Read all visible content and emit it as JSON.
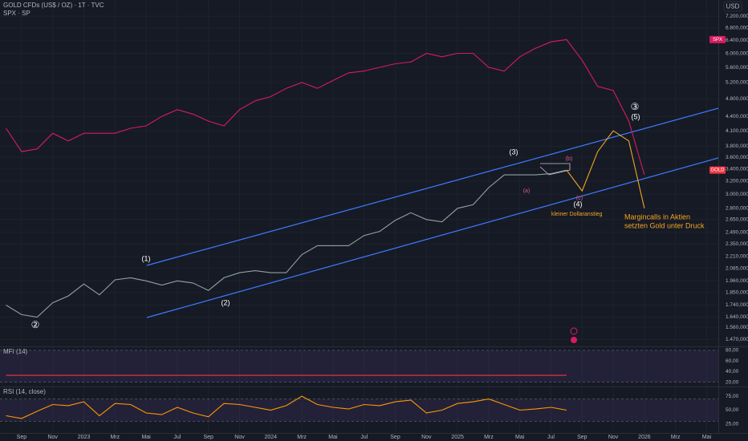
{
  "chart_data": [
    {
      "type": "line",
      "title": "GOLD CFDs (US$ / OZ) · 1T · TVC",
      "overlay_label": "SPX · SP",
      "currency": "USD",
      "log": true,
      "grid": true,
      "categories": [
        null,
        "Sep",
        null,
        "Nov",
        null,
        "2023",
        null,
        "Mrz",
        null,
        "Mai",
        null,
        "Jul",
        null,
        "Sep",
        null,
        "Nov",
        null,
        "2024",
        null,
        "Mrz",
        null,
        "Mai",
        null,
        "Jul",
        null,
        "Sep",
        null,
        "Nov",
        null,
        "2025",
        null,
        "Mrz",
        null,
        "Mai",
        null,
        "Jul",
        null,
        "Sep",
        null,
        "Nov",
        null,
        "2026",
        null,
        "Mrz",
        null,
        "Mai"
      ],
      "series": [
        {
          "name": "GOLD",
          "color": "#8fa39e",
          "values": [
            1740,
            1660,
            1640,
            1760,
            1820,
            1930,
            1830,
            1970,
            1990,
            1960,
            1920,
            1960,
            1940,
            1870,
            1990,
            2040,
            2060,
            2040,
            2040,
            2230,
            2330,
            2330,
            2330,
            2450,
            2500,
            2640,
            2740,
            2650,
            2620,
            2800,
            2850,
            3100,
            3300,
            3300,
            3300,
            3320,
            3380,
            null,
            null,
            null,
            null,
            null,
            null,
            null,
            null,
            null
          ]
        },
        {
          "name": "SPX",
          "color": "#d81b60",
          "values": [
            4150,
            3700,
            3750,
            4050,
            3900,
            4050,
            4050,
            4050,
            4150,
            4200,
            4400,
            4550,
            4450,
            4300,
            4200,
            4550,
            4750,
            4850,
            5050,
            5200,
            5050,
            5250,
            5450,
            5500,
            5600,
            5700,
            5750,
            6000,
            5900,
            6000,
            6000,
            5600,
            5500,
            5900,
            6150,
            6350,
            6420,
            5800,
            5100,
            5000,
            4300,
            3300,
            null,
            null,
            null,
            null
          ]
        },
        {
          "color": "#f5a623",
          "values": [
            null,
            null,
            null,
            null,
            null,
            null,
            null,
            null,
            null,
            null,
            null,
            null,
            null,
            null,
            null,
            null,
            null,
            null,
            null,
            null,
            null,
            null,
            null,
            null,
            null,
            null,
            null,
            null,
            null,
            null,
            null,
            null,
            null,
            null,
            null,
            null,
            3380,
            3050,
            3700,
            4100,
            3900,
            2800,
            null,
            null,
            null,
            null
          ]
        }
      ],
      "ylim": [
        1420,
        7800
      ],
      "yticks": [
        {
          "value": 7200,
          "label": "7.200,000"
        },
        {
          "value": 6800,
          "label": "6.800,000"
        },
        {
          "value": 6400,
          "label": "6.400,000"
        },
        {
          "value": 6000,
          "label": "6.000,000"
        },
        {
          "value": 5600,
          "label": "5.600,000"
        },
        {
          "value": 5200,
          "label": "5.200,000"
        },
        {
          "value": 4800,
          "label": "4.800,000"
        },
        {
          "value": 4400,
          "label": "4.400,000"
        },
        {
          "value": 4100,
          "label": "4.100,000"
        },
        {
          "value": 3800,
          "label": "3.800,000"
        },
        {
          "value": 3600,
          "label": "3.600,000"
        },
        {
          "value": 3400,
          "label": "3.400,000"
        },
        {
          "value": 3200,
          "label": "3.200,000"
        },
        {
          "value": 3000,
          "label": "3.000,000"
        },
        {
          "value": 2800,
          "label": "2.800,000"
        },
        {
          "value": 2650,
          "label": "2.650,000"
        },
        {
          "value": 2490,
          "label": "2.490,000"
        },
        {
          "value": 2350,
          "label": "2.350,000"
        },
        {
          "value": 2210,
          "label": "2.210,000"
        },
        {
          "value": 2085,
          "label": "2.085,000"
        },
        {
          "value": 1960,
          "label": "1.960,000"
        },
        {
          "value": 1850,
          "label": "1.850,000"
        },
        {
          "value": 1740,
          "label": "1.740,000"
        },
        {
          "value": 1640,
          "label": "1.640,000"
        },
        {
          "value": 1560,
          "label": "1.560,000"
        },
        {
          "value": 1470,
          "label": "1.470,000"
        }
      ],
      "annotations": [
        "(1)",
        "(2)",
        "②",
        "(3)",
        "(4)",
        "(5)",
        "③",
        "(a)",
        "(b)",
        "(c)",
        "kleiner Dollaranstieg",
        "Margincalls in Aktien",
        "setzten Gold unter Druck"
      ]
    },
    {
      "type": "line",
      "title": "MFI (14)",
      "color": "#f23645",
      "values": [
        33,
        33,
        33,
        33,
        33,
        33,
        33,
        33,
        33,
        33,
        33,
        33,
        33,
        33,
        33,
        33,
        33,
        33,
        33,
        33,
        33,
        33,
        33,
        33,
        33,
        33,
        33,
        33,
        33,
        33,
        33,
        33,
        33,
        33,
        33,
        33,
        33,
        null,
        null,
        null,
        null,
        null,
        null,
        null,
        null,
        null
      ],
      "band": [
        20,
        80
      ],
      "ylim": [
        12,
        86
      ],
      "yticks": [
        {
          "value": 80,
          "label": "80,00"
        },
        {
          "value": 60,
          "label": "60,00"
        },
        {
          "value": 40,
          "label": "40,00"
        },
        {
          "value": 20,
          "label": "20,00"
        }
      ]
    },
    {
      "type": "line",
      "title": "RSI (14, close)",
      "color": "#ff9800",
      "values": [
        40,
        35,
        48,
        60,
        58,
        65,
        40,
        62,
        60,
        45,
        42,
        55,
        45,
        38,
        62,
        60,
        55,
        50,
        58,
        75,
        60,
        55,
        52,
        60,
        58,
        65,
        68,
        45,
        50,
        62,
        65,
        70,
        60,
        50,
        52,
        55,
        50,
        null,
        null,
        null,
        null,
        null,
        null,
        null,
        null,
        null
      ],
      "band": [
        30,
        70
      ],
      "ylim": [
        9,
        91
      ],
      "yticks": [
        {
          "value": 75,
          "label": "75,00"
        },
        {
          "value": 50,
          "label": "50,00"
        },
        {
          "value": 25,
          "label": "25,00"
        }
      ]
    }
  ]
}
